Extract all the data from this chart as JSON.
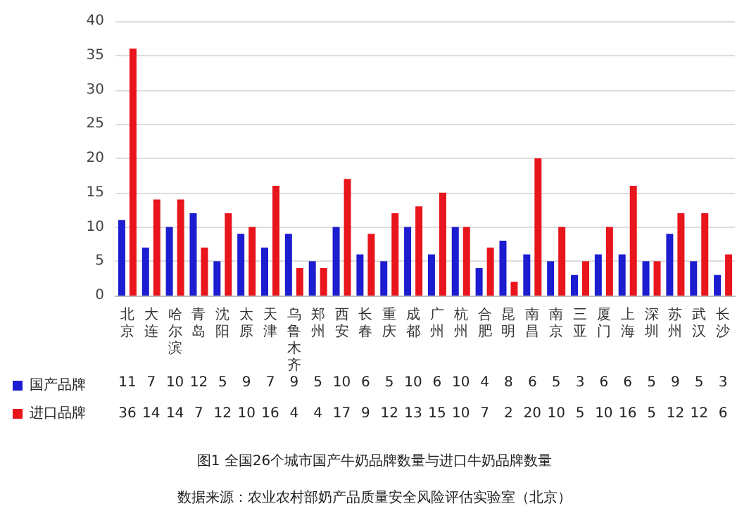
{
  "chart_data": {
    "type": "bar",
    "title": "图1 全国26个城市国产牛奶品牌数量与进口牛奶品牌数量",
    "annotations": [
      "数据来源：农业农村部奶产品质量安全风险评估实验室（北京）"
    ],
    "categories": [
      "北京",
      "大连",
      "哈尔滨",
      "青岛",
      "沈阳",
      "太原",
      "天津",
      "乌鲁木齐",
      "郑州",
      "西安",
      "长春",
      "重庆",
      "成都",
      "广州",
      "杭州",
      "合肥",
      "昆明",
      "南昌",
      "南京",
      "三亚",
      "厦门",
      "上海",
      "深圳",
      "苏州",
      "武汉",
      "长沙"
    ],
    "series": [
      {
        "name": "国产品牌",
        "color": "#1c1cd0",
        "values": [
          11,
          7,
          10,
          12,
          5,
          9,
          7,
          9,
          5,
          10,
          6,
          5,
          10,
          6,
          10,
          4,
          8,
          6,
          5,
          3,
          6,
          6,
          5,
          9,
          5,
          3
        ]
      },
      {
        "name": "进口品牌",
        "color": "#e8151c",
        "values": [
          36,
          14,
          14,
          7,
          12,
          10,
          16,
          4,
          4,
          17,
          9,
          12,
          13,
          15,
          10,
          7,
          2,
          20,
          10,
          5,
          10,
          16,
          5,
          12,
          12,
          6
        ]
      }
    ],
    "ylim": [
      0,
      40
    ],
    "yticks": [
      0,
      5,
      10,
      15,
      20,
      25,
      30,
      35,
      40
    ],
    "grid": "y",
    "legend": "bottom left",
    "data_labels": true
  }
}
